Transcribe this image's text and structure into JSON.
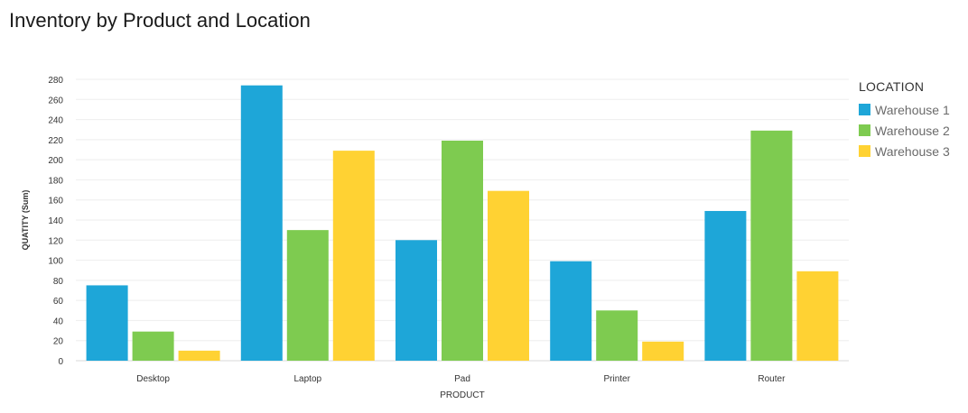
{
  "page": {
    "title": "Inventory by Product and Location"
  },
  "legend": {
    "title": "LOCATION"
  },
  "chart_data": {
    "type": "bar",
    "title": "Inventory by Product and Location",
    "xlabel": "PRODUCT",
    "ylabel": "QUATITY (Sum)",
    "ylim": [
      0,
      280
    ],
    "yticks": [
      0,
      20,
      40,
      60,
      80,
      100,
      120,
      140,
      160,
      180,
      200,
      220,
      240,
      260,
      280
    ],
    "grid": true,
    "legend_position": "right",
    "categories": [
      "Desktop",
      "Laptop",
      "Pad",
      "Printer",
      "Router"
    ],
    "series": [
      {
        "name": "Warehouse 1",
        "color": "#1ea6d8",
        "values": [
          75,
          274,
          120,
          99,
          149
        ]
      },
      {
        "name": "Warehouse 2",
        "color": "#7ecb50",
        "values": [
          29,
          130,
          219,
          50,
          229
        ]
      },
      {
        "name": "Warehouse 3",
        "color": "#ffd233",
        "values": [
          10,
          209,
          169,
          19,
          89
        ]
      }
    ]
  }
}
